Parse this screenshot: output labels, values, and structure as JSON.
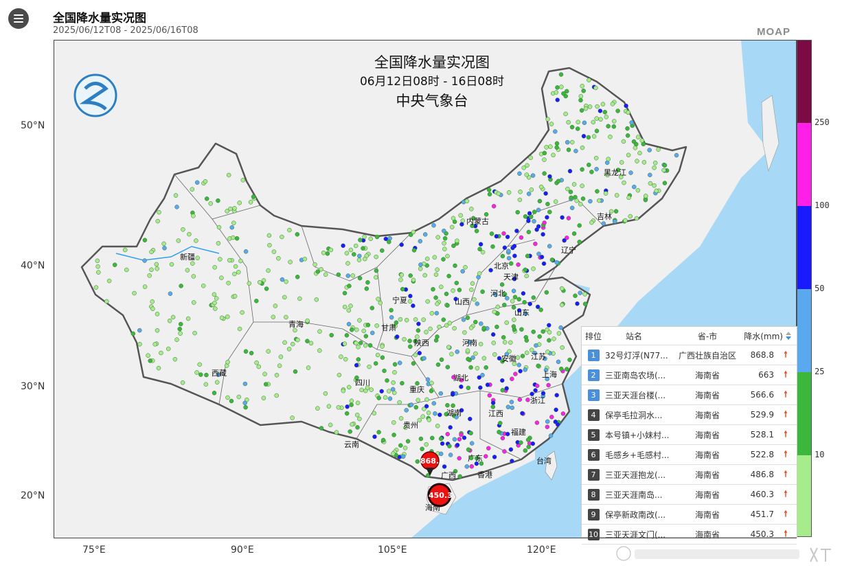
{
  "header": {
    "title": "全国降水量实况图",
    "date_range": "2025/06/12T08  -  2025/06/16T08",
    "brand": "MOAP"
  },
  "map": {
    "title_line1": "全国降水量实况图",
    "title_line2": "06月12日08时 - 16日08时",
    "title_line3": "中央气象台",
    "lat_labels": [
      "50°N",
      "40°N",
      "30°N",
      "20°N"
    ],
    "lon_labels": [
      "75°E",
      "90°E",
      "105°E",
      "120°E"
    ],
    "provinces": [
      "黑龙江",
      "吉林",
      "内蒙古",
      "辽宁",
      "北京",
      "天津",
      "河北",
      "山西",
      "山东",
      "宁夏",
      "甘肃",
      "青海",
      "新疆",
      "西藏",
      "陕西",
      "河南",
      "安徽",
      "江苏",
      "上海",
      "四川",
      "重庆",
      "湖北",
      "浙江",
      "湖南",
      "江西",
      "贵州",
      "云南",
      "福建",
      "广东",
      "广西",
      "香港",
      "台湾",
      "海南"
    ],
    "markers": [
      "868.8",
      "450.3"
    ]
  },
  "legend": {
    "labels": [
      "250",
      "100",
      "50",
      "25",
      "10"
    ],
    "colors": [
      "#7b0a45",
      "#ff1fe6",
      "#1a1aff",
      "#5aa9f0",
      "#3bb83b",
      "#a6ec8a"
    ]
  },
  "ranking": {
    "headers": {
      "rank": "排位",
      "station": "站名",
      "province": "省-市",
      "precip": "降水(mm)"
    },
    "rows": [
      {
        "rank": "1",
        "station": "32号灯浮(N77...",
        "province": "广西壮族自治区",
        "value": "868.8"
      },
      {
        "rank": "2",
        "station": "三亚南岛农场(...",
        "province": "海南省",
        "value": "663"
      },
      {
        "rank": "3",
        "station": "三亚天涯台楼(...",
        "province": "海南省",
        "value": "566.6"
      },
      {
        "rank": "4",
        "station": "保亭毛拉洞水...",
        "province": "海南省",
        "value": "529.9"
      },
      {
        "rank": "5",
        "station": "本号镇+小妹村...",
        "province": "海南省",
        "value": "528.1"
      },
      {
        "rank": "6",
        "station": "毛感乡+毛感村...",
        "province": "海南省",
        "value": "522.8"
      },
      {
        "rank": "7",
        "station": "三亚天涯抱龙(...",
        "province": "海南省",
        "value": "486.8"
      },
      {
        "rank": "8",
        "station": "三亚天涯南岛...",
        "province": "海南省",
        "value": "460.3"
      },
      {
        "rank": "9",
        "station": "保亭新政南改(...",
        "province": "海南省",
        "value": "451.7"
      },
      {
        "rank": "10",
        "station": "三亚天涯文门(...",
        "province": "海南省",
        "value": "450.3"
      }
    ]
  }
}
